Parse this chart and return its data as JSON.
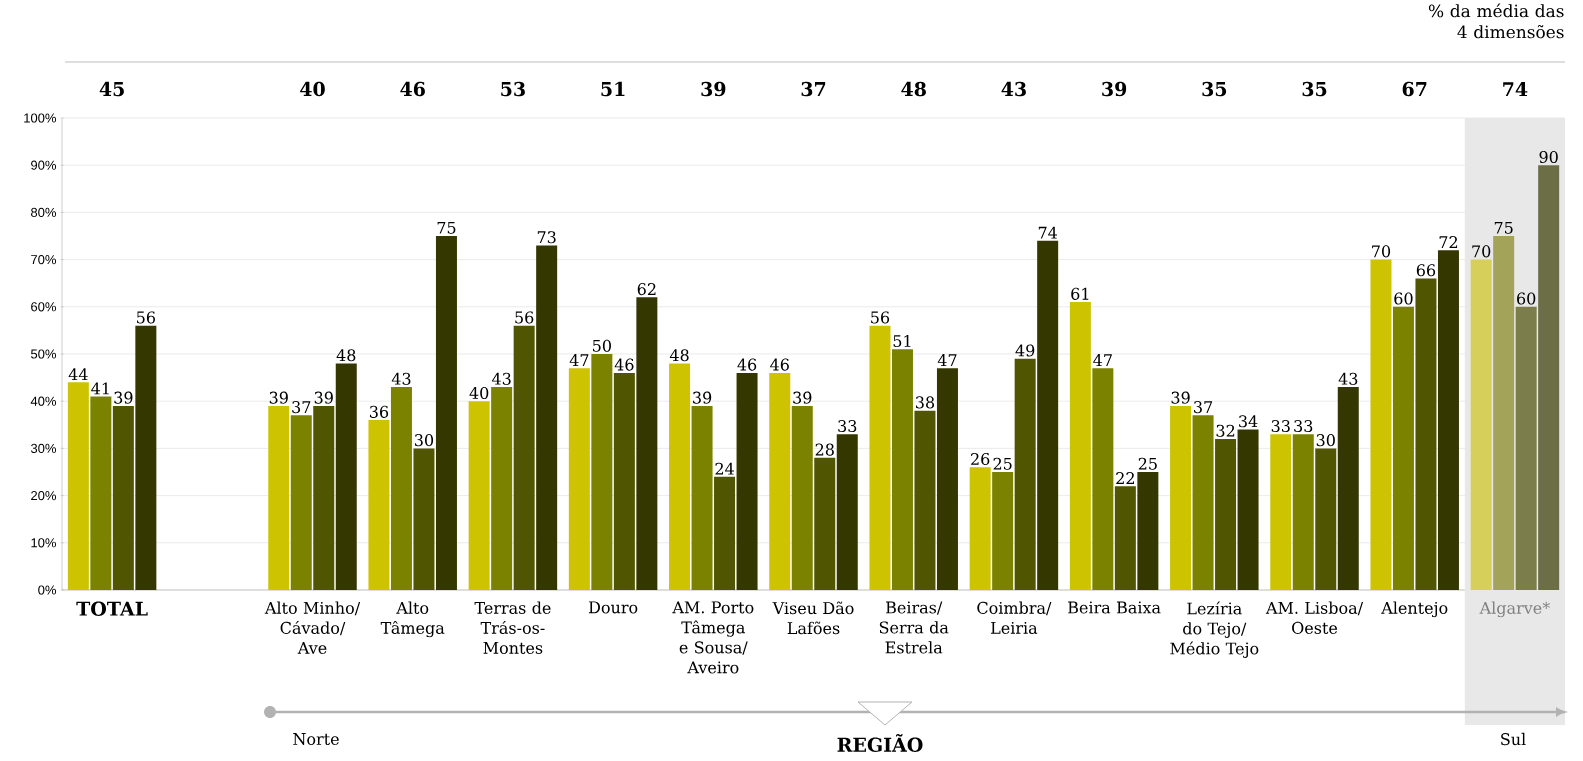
{
  "chart_data": {
    "type": "bar",
    "title": "% da média das 4 dimensões",
    "xlabel": "REGIÃO",
    "categories": [
      "TOTAL",
      null,
      "Alto Minho/ Cávado/ Ave",
      "Alto Tâmega",
      "Terras de Trás-os-Montes",
      "Douro",
      "AM. Porto Tâmega e Sousa/ Aveiro",
      "Viseu Dão Lafões",
      "Beiras/ Serra da Estrela",
      "Coimbra/ Leiria",
      "Beira Baixa",
      "Lezíria do Tejo/ Médio Tejo",
      "AM. Lisboa/ Oeste",
      "Alentejo",
      "Algarve*"
    ],
    "series": [
      {
        "colors": [
          "#cdc300",
          "#cdc300",
          "#cdc300",
          "#cdc300",
          "#cdc300",
          "#cdc300",
          "#cdc300",
          "#cdc300",
          "#cdc300",
          "#cdc300",
          "#cdc300",
          "#cdc300",
          "#cdc300",
          "#cdc300",
          "#d6d05a"
        ],
        "values": [
          44,
          null,
          39,
          36,
          40,
          47,
          48,
          46,
          56,
          26,
          61,
          39,
          33,
          70,
          70
        ]
      },
      {
        "colors": [
          "#7a8200",
          "#7a8200",
          "#7a8200",
          "#7a8200",
          "#7a8200",
          "#7a8200",
          "#7a8200",
          "#7a8200",
          "#7a8200",
          "#7a8200",
          "#7a8200",
          "#7a8200",
          "#7a8200",
          "#7a8200",
          "#a3a45a"
        ],
        "values": [
          41,
          null,
          37,
          43,
          43,
          50,
          39,
          39,
          51,
          25,
          47,
          37,
          33,
          60,
          75
        ]
      },
      {
        "colors": [
          "#4f5500",
          "#4f5500",
          "#4f5500",
          "#4f5500",
          "#4f5500",
          "#4f5500",
          "#4f5500",
          "#4f5500",
          "#4f5500",
          "#4f5500",
          "#4f5500",
          "#4f5500",
          "#4f5500",
          "#4f5500",
          "#7b7d4a"
        ],
        "values": [
          39,
          null,
          39,
          30,
          56,
          46,
          24,
          28,
          38,
          49,
          22,
          32,
          30,
          66,
          60
        ]
      },
      {
        "colors": [
          "#343800",
          "#343800",
          "#343800",
          "#343800",
          "#343800",
          "#343800",
          "#343800",
          "#343800",
          "#343800",
          "#343800",
          "#343800",
          "#343800",
          "#343800",
          "#343800",
          "#6c6f45"
        ],
        "values": [
          56,
          null,
          48,
          75,
          73,
          62,
          46,
          33,
          47,
          74,
          25,
          34,
          43,
          72,
          90
        ]
      }
    ],
    "data_labels": true,
    "ylim": [
      0,
      100
    ],
    "yticks": [
      {
        "value": 0,
        "label": "0%"
      },
      {
        "value": 10,
        "label": "10%"
      },
      {
        "value": 20,
        "label": "20%"
      },
      {
        "value": 30,
        "label": "30%"
      },
      {
        "value": 40,
        "label": "40%"
      },
      {
        "value": 50,
        "label": "50%"
      },
      {
        "value": 60,
        "label": "60%"
      },
      {
        "value": 70,
        "label": "70%"
      },
      {
        "value": 80,
        "label": "80%"
      },
      {
        "value": 90,
        "label": "90%"
      },
      {
        "value": 100,
        "label": "100%"
      }
    ],
    "grid": "y",
    "bands": [
      {
        "axis": "x",
        "from": "Algarve*",
        "to": "Algarve*",
        "color": "#e8e8e8"
      }
    ],
    "annotations": [
      "45",
      "40",
      "46",
      "53",
      "51",
      "39",
      "37",
      "48",
      "43",
      "39",
      "35",
      "35",
      "67",
      "74",
      "Norte",
      "Sul"
    ]
  }
}
